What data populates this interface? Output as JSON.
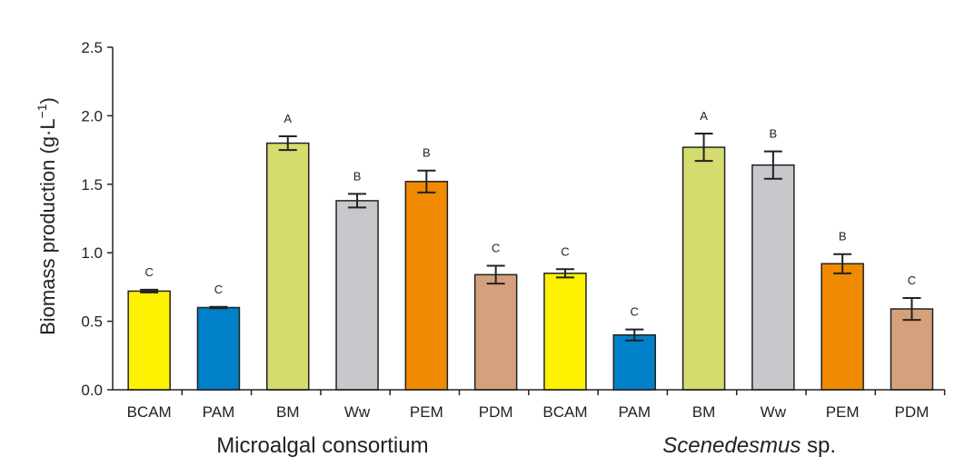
{
  "chart_data": {
    "type": "bar",
    "ylabel": "Biomass production (g·L",
    "ylabel_sup": "−1",
    "ylabel_close": ")",
    "ylim": [
      0,
      2.5
    ],
    "yticks": [
      "0.0",
      "0.5",
      "1.0",
      "1.5",
      "2.0",
      "2.5"
    ],
    "ytick_values": [
      0,
      0.5,
      1.0,
      1.5,
      2.0,
      2.5
    ],
    "groups": [
      {
        "name": "Microalgal consortium",
        "italic_part": "",
        "plain_part": "Microalgal consortium",
        "bars": [
          {
            "category": "BCAM",
            "value": 0.72,
            "error": 0.01,
            "letter": "C",
            "color": "#FFF200"
          },
          {
            "category": "PAM",
            "value": 0.6,
            "error": 0.005,
            "letter": "C",
            "color": "#0080C8"
          },
          {
            "category": "BM",
            "value": 1.8,
            "error": 0.05,
            "letter": "A",
            "color": "#D4DC6E"
          },
          {
            "category": "Ww",
            "value": 1.38,
            "error": 0.05,
            "letter": "B",
            "color": "#C7C7CC"
          },
          {
            "category": "PEM",
            "value": 1.52,
            "error": 0.08,
            "letter": "B",
            "color": "#F08A00"
          },
          {
            "category": "PDM",
            "value": 0.84,
            "error": 0.065,
            "letter": "C",
            "color": "#D4A17C"
          }
        ]
      },
      {
        "name": "Scenedesmus sp.",
        "italic_part": "Scenedesmus",
        "plain_part": " sp.",
        "bars": [
          {
            "category": "BCAM",
            "value": 0.85,
            "error": 0.03,
            "letter": "C",
            "color": "#FFF200"
          },
          {
            "category": "PAM",
            "value": 0.4,
            "error": 0.04,
            "letter": "C",
            "color": "#0080C8"
          },
          {
            "category": "BM",
            "value": 1.77,
            "error": 0.1,
            "letter": "A",
            "color": "#D4DC6E"
          },
          {
            "category": "Ww",
            "value": 1.64,
            "error": 0.1,
            "letter": "B",
            "color": "#C7C7CC"
          },
          {
            "category": "PEM",
            "value": 0.92,
            "error": 0.07,
            "letter": "B",
            "color": "#F08A00"
          },
          {
            "category": "PDM",
            "value": 0.59,
            "error": 0.08,
            "letter": "C",
            "color": "#D4A17C"
          }
        ]
      }
    ]
  }
}
